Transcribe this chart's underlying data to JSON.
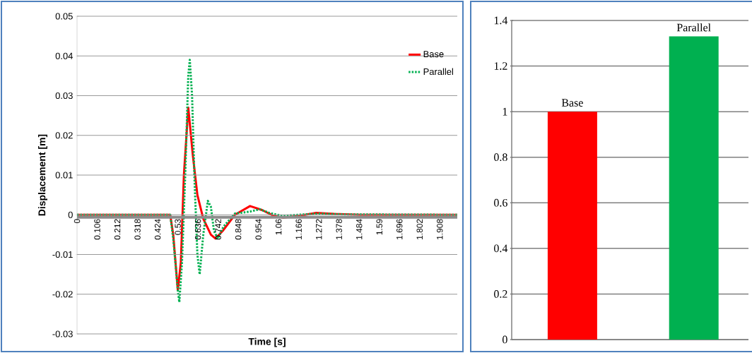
{
  "chart_data": [
    {
      "type": "line",
      "xlabel": "Time [s]",
      "ylabel": "Displacement [m]",
      "xlim": [
        0,
        2.0
      ],
      "ylim": [
        -0.03,
        0.05
      ],
      "xticks": [
        0,
        0.106,
        0.212,
        0.318,
        0.424,
        0.53,
        0.636,
        0.742,
        0.848,
        0.954,
        1.06,
        1.166,
        1.272,
        1.378,
        1.484,
        1.59,
        1.696,
        1.802,
        1.908
      ],
      "yticks": [
        -0.03,
        -0.02,
        -0.01,
        0,
        0.01,
        0.02,
        0.03,
        0.04,
        0.05
      ],
      "grid": "y",
      "legend": "top right",
      "marker": "none",
      "series": [
        {
          "name": "Base",
          "color": "#ff0000",
          "line_style": "solid",
          "x": [
            0,
            0.49,
            0.506,
            0.53,
            0.546,
            0.562,
            0.585,
            0.609,
            0.633,
            0.664,
            0.704,
            0.728,
            0.767,
            0.83,
            0.91,
            0.973,
            1.036,
            1.084,
            1.163,
            1.258,
            1.353,
            1.495,
            2.0
          ],
          "values": [
            0,
            0,
            -0.005,
            -0.019,
            -0.012,
            0.01,
            0.027,
            0.015,
            0.005,
            -0.001,
            -0.005,
            -0.006,
            -0.004,
            0,
            0.0022,
            0.0012,
            -0.0003,
            -0.0007,
            -0.0003,
            0.0005,
            0.0002,
            0,
            0
          ]
        },
        {
          "name": "Parallel",
          "color": "#00b050",
          "line_style": "dotted",
          "x": [
            0,
            0.49,
            0.506,
            0.53,
            0.538,
            0.552,
            0.569,
            0.585,
            0.593,
            0.605,
            0.617,
            0.633,
            0.645,
            0.664,
            0.688,
            0.704,
            0.72,
            0.74,
            0.77,
            0.83,
            0.91,
            0.96,
            1.01,
            1.08,
            1.16,
            1.27,
            1.4,
            2.0
          ],
          "values": [
            0,
            0,
            -0.006,
            -0.019,
            -0.022,
            -0.012,
            0.01,
            0.035,
            0.039,
            0.03,
            0.01,
            -0.01,
            -0.015,
            -0.005,
            0.0035,
            0.002,
            -0.004,
            -0.006,
            -0.003,
            0.0003,
            0.0008,
            0.0014,
            0.0005,
            -0.0003,
            0,
            0.0003,
            0.0001,
            0
          ]
        }
      ]
    },
    {
      "type": "bar",
      "categories": [
        "Base",
        "Parallel"
      ],
      "values": [
        1,
        1.33
      ],
      "colors": [
        "#ff0000",
        "#00b050"
      ],
      "ylim": [
        0,
        1.4
      ],
      "yticks": [
        0,
        0.2,
        0.4,
        0.6,
        0.8,
        1,
        1.2,
        1.4
      ],
      "grid": "y",
      "tick_labels": "y"
    }
  ]
}
